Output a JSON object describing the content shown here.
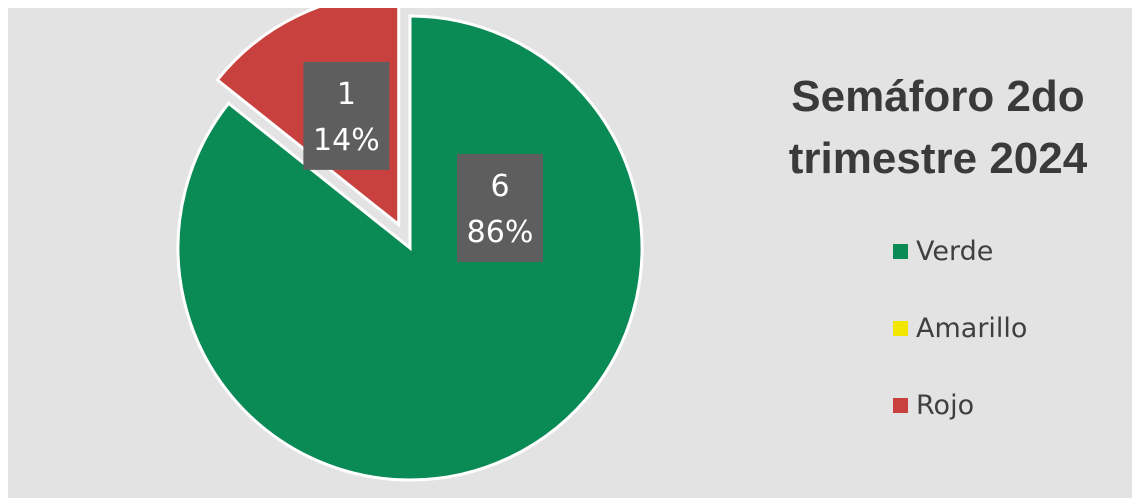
{
  "chart_data": {
    "type": "pie",
    "title": "Semáforo 2do trimestre 2024",
    "categories": [
      "Verde",
      "Amarillo",
      "Rojo"
    ],
    "values": [
      6,
      0,
      1
    ],
    "percent_labels": [
      "86%",
      "0%",
      "14%"
    ],
    "colors": [
      "#0a8a55",
      "#f2e600",
      "#c8413e"
    ],
    "legend_position": "right",
    "exploded_slice": "Rojo"
  }
}
